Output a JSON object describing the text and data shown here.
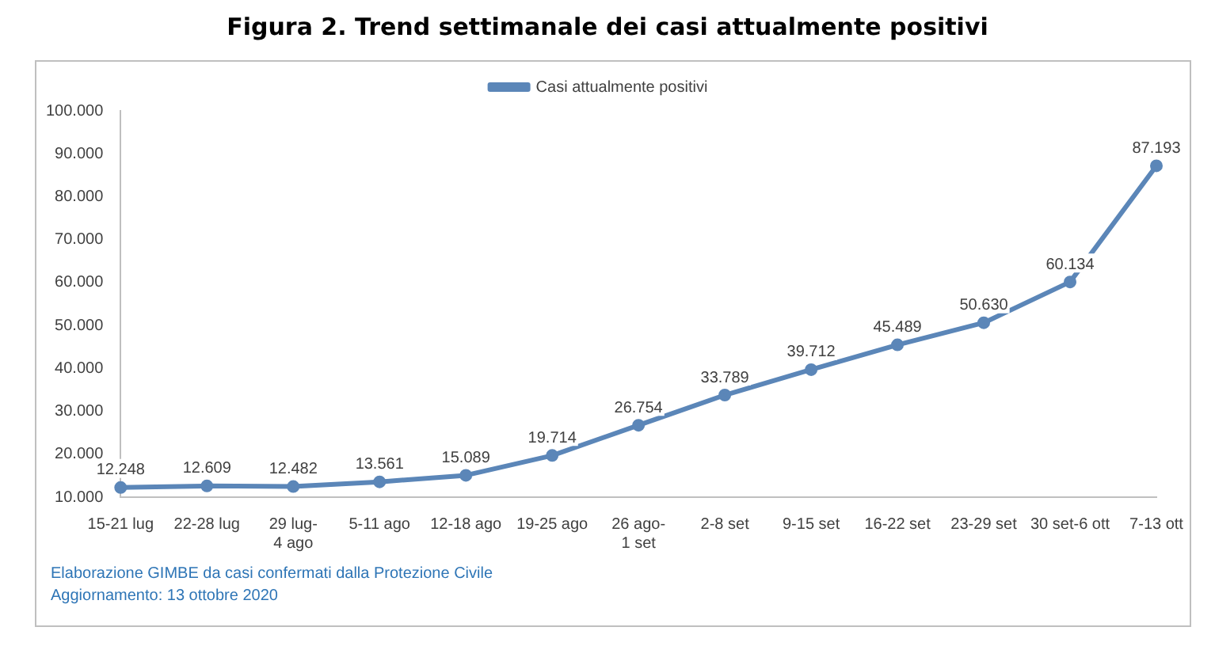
{
  "chart_data": {
    "type": "line",
    "title": "Figura 2. Trend settimanale dei casi attualmente positivi",
    "categories": [
      "15-21 lug",
      "22-28 lug",
      "29 lug-4 ago",
      "5-11 ago",
      "12-18 ago",
      "19-25 ago",
      "26 ago-1 set",
      "2-8 set",
      "9-15 set",
      "16-22 set",
      "23-29 set",
      "30 set-6 ott",
      "7-13 ott"
    ],
    "series": [
      {
        "name": "Casi attualmente positivi",
        "color": "#5b86b8",
        "values": [
          12248,
          12609,
          12482,
          13561,
          15089,
          19714,
          26754,
          33789,
          39712,
          45489,
          50630,
          60134,
          87193
        ],
        "value_labels": [
          "12.248",
          "12.609",
          "12.482",
          "13.561",
          "15.089",
          "19.714",
          "26.754",
          "33.789",
          "39.712",
          "45.489",
          "50.630",
          "60.134",
          "87.193"
        ]
      }
    ],
    "ylim": [
      10000,
      100000
    ],
    "yticks": [
      {
        "value": 10000,
        "label": "10.000"
      },
      {
        "value": 20000,
        "label": "20.000"
      },
      {
        "value": 30000,
        "label": "30.000"
      },
      {
        "value": 40000,
        "label": "40.000"
      },
      {
        "value": 50000,
        "label": "50.000"
      },
      {
        "value": 60000,
        "label": "60.000"
      },
      {
        "value": 70000,
        "label": "70.000"
      },
      {
        "value": 80000,
        "label": "80.000"
      },
      {
        "value": 90000,
        "label": "90.000"
      },
      {
        "value": 100000,
        "label": "100.000"
      }
    ],
    "legend": "top",
    "marker": "circle",
    "line_style": "solid",
    "annotations": [
      "Elaborazione GIMBE da casi confermati dalla Protezione Civile",
      "Aggiornamento:  13 ottobre 2020"
    ]
  }
}
